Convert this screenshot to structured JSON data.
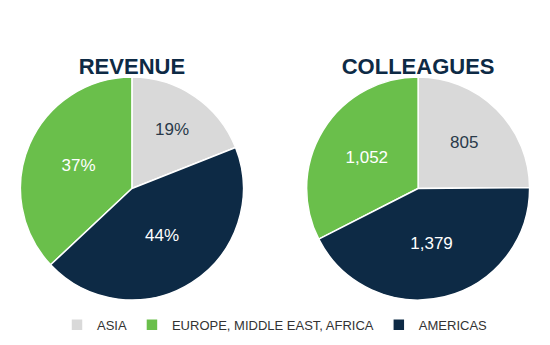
{
  "chart_data": [
    {
      "type": "pie",
      "title": "REVENUE",
      "categories": [
        "ASIA",
        "EUROPE, MIDDLE EAST, AFRICA",
        "AMERICAS"
      ],
      "values": [
        19,
        37,
        44
      ],
      "value_labels": [
        "19%",
        "37%",
        "44%"
      ],
      "colors": [
        "#d9d9d9",
        "#6abf4b",
        "#0d2a45"
      ],
      "data_labels": true,
      "legend": "bottom"
    },
    {
      "type": "pie",
      "title": "COLLEAGUES",
      "categories": [
        "ASIA",
        "EUROPE, MIDDLE EAST, AFRICA",
        "AMERICAS"
      ],
      "values": [
        805,
        1052,
        1379
      ],
      "value_labels": [
        "805",
        "1,052",
        "1,379"
      ],
      "colors": [
        "#d9d9d9",
        "#6abf4b",
        "#0d2a45"
      ],
      "data_labels": true,
      "legend": "bottom"
    }
  ]
}
